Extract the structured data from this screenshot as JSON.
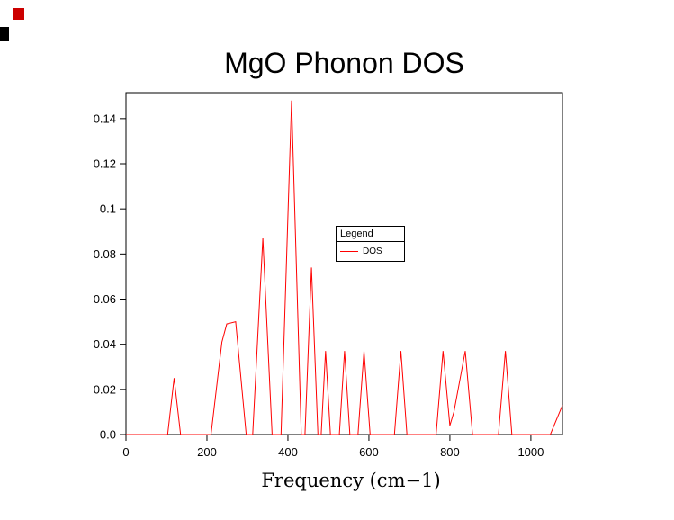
{
  "decorations": {
    "red_marker_color": "#cc0000",
    "black_marker_color": "#000000"
  },
  "chart_data": {
    "type": "line",
    "title": "MgO Phonon DOS",
    "xlabel": "Frequency (cm−1)",
    "ylabel": "",
    "xlim": [
      0,
      1078
    ],
    "ylim": [
      0,
      0.1515
    ],
    "grid": false,
    "frame": true,
    "axis_color": "#000000",
    "background_color": "#ffffff",
    "x_ticks": [
      {
        "value": 0,
        "label": "0"
      },
      {
        "value": 200,
        "label": "200"
      },
      {
        "value": 400,
        "label": "400"
      },
      {
        "value": 600,
        "label": "600"
      },
      {
        "value": 800,
        "label": "800"
      },
      {
        "value": 1000,
        "label": "1000"
      }
    ],
    "y_ticks": [
      {
        "value": 0.0,
        "label": "0.0"
      },
      {
        "value": 0.02,
        "label": "0.02"
      },
      {
        "value": 0.04,
        "label": "0.04"
      },
      {
        "value": 0.06,
        "label": "0.06"
      },
      {
        "value": 0.08,
        "label": "0.08"
      },
      {
        "value": 0.1,
        "label": "0.1"
      },
      {
        "value": 0.12,
        "label": "0.12"
      },
      {
        "value": 0.14,
        "label": "0.14"
      }
    ],
    "legend": {
      "title": "Legend",
      "position": "center-right",
      "entries": [
        {
          "label": "DOS",
          "color": "#ff0000"
        }
      ]
    },
    "series": [
      {
        "name": "DOS",
        "color": "#ff0000",
        "points": [
          [
            0,
            0
          ],
          [
            103,
            0
          ],
          [
            119,
            0.025
          ],
          [
            135,
            0
          ],
          [
            210,
            0
          ],
          [
            237,
            0.041
          ],
          [
            249,
            0.049
          ],
          [
            271,
            0.05
          ],
          [
            297,
            0
          ],
          [
            313,
            0
          ],
          [
            338,
            0.087
          ],
          [
            361,
            0
          ],
          [
            383,
            0
          ],
          [
            409,
            0.148
          ],
          [
            433,
            0
          ],
          [
            442,
            0
          ],
          [
            458,
            0.074
          ],
          [
            474,
            0
          ],
          [
            482,
            0
          ],
          [
            493,
            0.037
          ],
          [
            505,
            0
          ],
          [
            527,
            0
          ],
          [
            540,
            0.037
          ],
          [
            553,
            0
          ],
          [
            573,
            0
          ],
          [
            588,
            0.037
          ],
          [
            603,
            0
          ],
          [
            663,
            0
          ],
          [
            679,
            0.037
          ],
          [
            694,
            0
          ],
          [
            766,
            0
          ],
          [
            783,
            0.037
          ],
          [
            800,
            0.004
          ],
          [
            810,
            0.01
          ],
          [
            838,
            0.037
          ],
          [
            856,
            0
          ],
          [
            920,
            0
          ],
          [
            937,
            0.037
          ],
          [
            953,
            0
          ],
          [
            1048,
            0
          ],
          [
            1078,
            0.013
          ]
        ]
      }
    ]
  }
}
